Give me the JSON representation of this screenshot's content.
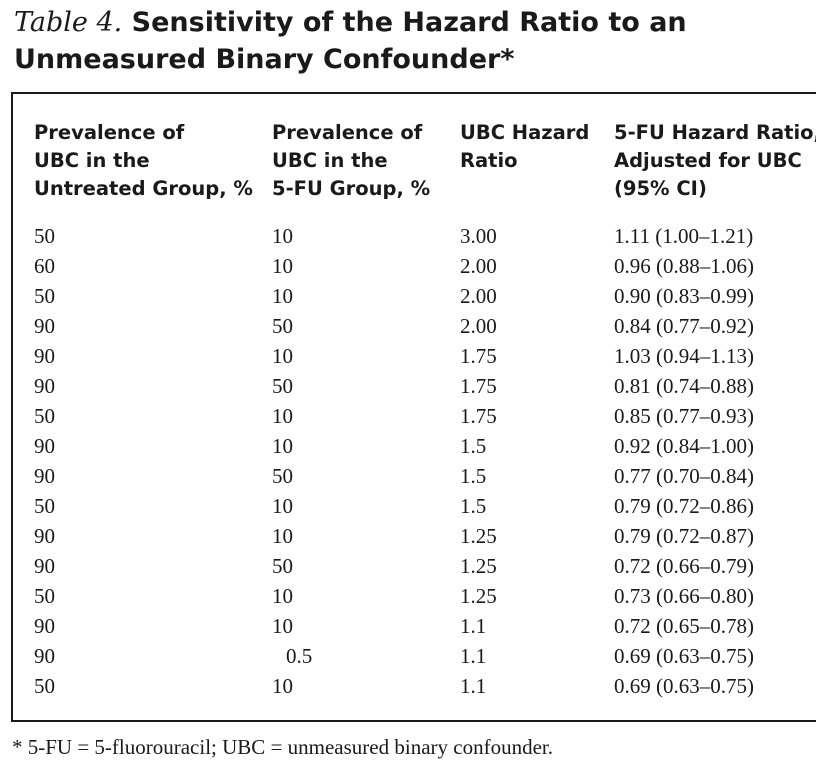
{
  "title": {
    "label": "Table 4.",
    "line1_text": "Sensitivity of the Hazard Ratio to an",
    "line2_text": "Unmeasured Binary Confounder*"
  },
  "headers": [
    [
      "Prevalence of",
      "UBC in the",
      "Untreated Group, %"
    ],
    [
      "Prevalence of",
      "UBC in the",
      "5-FU Group, %"
    ],
    [
      "UBC Hazard",
      "Ratio"
    ],
    [
      "5-FU Hazard Ratio,",
      "Adjusted for UBC",
      "(95% CI)"
    ]
  ],
  "rows": [
    [
      "50",
      "10",
      "3.00",
      "1.11 (1.00–1.21)"
    ],
    [
      "60",
      "10",
      "2.00",
      "0.96 (0.88–1.06)"
    ],
    [
      "50",
      "10",
      "2.00",
      "0.90 (0.83–0.99)"
    ],
    [
      "90",
      "50",
      "2.00",
      "0.84 (0.77–0.92)"
    ],
    [
      "90",
      "10",
      "1.75",
      "1.03 (0.94–1.13)"
    ],
    [
      "90",
      "50",
      "1.75",
      "0.81 (0.74–0.88)"
    ],
    [
      "50",
      "10",
      "1.75",
      "0.85 (0.77–0.93)"
    ],
    [
      "90",
      "10",
      "1.5",
      "0.92 (0.84–1.00)"
    ],
    [
      "90",
      "50",
      "1.5",
      "0.77 (0.70–0.84)"
    ],
    [
      "50",
      "10",
      "1.5",
      "0.79 (0.72–0.86)"
    ],
    [
      "90",
      "10",
      "1.25",
      "0.79 (0.72–0.87)"
    ],
    [
      "90",
      "50",
      "1.25",
      "0.72 (0.66–0.79)"
    ],
    [
      "50",
      "10",
      "1.25",
      "0.73 (0.66–0.80)"
    ],
    [
      "90",
      "10",
      "1.1",
      "0.72 (0.65–0.78)"
    ],
    [
      "90",
      "0.5",
      "1.1",
      "0.69 (0.63–0.75)"
    ],
    [
      "50",
      "10",
      "1.1",
      "0.69 (0.63–0.75)"
    ]
  ],
  "footnote": "* 5-FU = 5-fluorouracil; UBC = unmeasured binary confounder."
}
